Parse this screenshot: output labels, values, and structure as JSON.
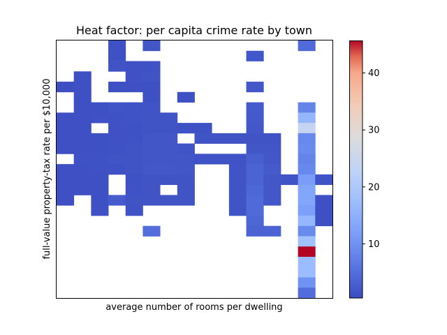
{
  "chart_data": {
    "type": "heatmap",
    "title": "Heat factor: per capita crime rate by town",
    "xlabel": "average number of rooms per dwelling",
    "ylabel": "full-value property-tax rate per $10,000",
    "x_ticks_shown": false,
    "y_ticks_shown": false,
    "grid": false,
    "colormap": "coolwarm",
    "colorbar": {
      "vmin": 0.5,
      "vmax": 45.7,
      "ticks": [
        10,
        20,
        30,
        40
      ],
      "placement": "right"
    },
    "n_cols": 16,
    "n_rows": 25,
    "cells": [
      [
        3,
        0,
        1.2
      ],
      [
        5,
        0,
        1.8
      ],
      [
        14,
        0,
        4.5
      ],
      [
        3,
        1,
        1.3
      ],
      [
        11,
        1,
        1.9
      ],
      [
        3,
        2,
        1.5
      ],
      [
        4,
        2,
        1.2
      ],
      [
        5,
        2,
        1.3
      ],
      [
        1,
        3,
        1.0
      ],
      [
        4,
        3,
        1.2
      ],
      [
        5,
        3,
        1.5
      ],
      [
        0,
        4,
        0.8
      ],
      [
        1,
        4,
        1.0
      ],
      [
        3,
        4,
        1.1
      ],
      [
        4,
        4,
        1.0
      ],
      [
        5,
        4,
        1.1
      ],
      [
        11,
        4,
        2.0
      ],
      [
        1,
        5,
        1.0
      ],
      [
        5,
        5,
        1.1
      ],
      [
        7,
        5,
        1.1
      ],
      [
        1,
        6,
        1.0
      ],
      [
        2,
        6,
        1.1
      ],
      [
        3,
        6,
        1.6
      ],
      [
        4,
        6,
        1.4
      ],
      [
        5,
        6,
        1.6
      ],
      [
        11,
        6,
        2.4
      ],
      [
        14,
        6,
        8.0
      ],
      [
        0,
        7,
        1.0
      ],
      [
        1,
        7,
        1.0
      ],
      [
        2,
        7,
        1.2
      ],
      [
        3,
        7,
        1.3
      ],
      [
        4,
        7,
        1.4
      ],
      [
        5,
        7,
        1.5
      ],
      [
        6,
        7,
        1.5
      ],
      [
        11,
        7,
        2.2
      ],
      [
        14,
        7,
        16.0
      ],
      [
        0,
        8,
        1.0
      ],
      [
        1,
        8,
        1.0
      ],
      [
        3,
        8,
        1.2
      ],
      [
        4,
        8,
        1.3
      ],
      [
        5,
        8,
        1.5
      ],
      [
        6,
        8,
        1.5
      ],
      [
        7,
        8,
        1.3
      ],
      [
        8,
        8,
        1.3
      ],
      [
        11,
        8,
        2.0
      ],
      [
        14,
        8,
        24.0
      ],
      [
        0,
        9,
        1.0
      ],
      [
        1,
        9,
        1.0
      ],
      [
        2,
        9,
        1.1
      ],
      [
        3,
        9,
        1.2
      ],
      [
        4,
        9,
        1.3
      ],
      [
        5,
        9,
        1.8
      ],
      [
        6,
        9,
        1.8
      ],
      [
        8,
        9,
        1.5
      ],
      [
        9,
        9,
        1.5
      ],
      [
        10,
        9,
        1.5
      ],
      [
        11,
        9,
        1.5
      ],
      [
        12,
        9,
        1.5
      ],
      [
        14,
        9,
        8.5
      ],
      [
        0,
        10,
        1.0
      ],
      [
        1,
        10,
        1.0
      ],
      [
        2,
        10,
        1.1
      ],
      [
        3,
        10,
        1.3
      ],
      [
        4,
        10,
        1.5
      ],
      [
        5,
        10,
        1.8
      ],
      [
        6,
        10,
        1.8
      ],
      [
        7,
        10,
        1.6
      ],
      [
        11,
        10,
        1.8
      ],
      [
        12,
        10,
        1.8
      ],
      [
        14,
        10,
        9.0
      ],
      [
        1,
        11,
        1.2
      ],
      [
        2,
        11,
        1.3
      ],
      [
        3,
        11,
        1.5
      ],
      [
        4,
        11,
        1.6
      ],
      [
        5,
        11,
        1.8
      ],
      [
        6,
        11,
        1.8
      ],
      [
        7,
        11,
        1.8
      ],
      [
        8,
        11,
        1.4
      ],
      [
        9,
        11,
        1.4
      ],
      [
        10,
        11,
        1.4
      ],
      [
        11,
        11,
        3.0
      ],
      [
        12,
        11,
        2.0
      ],
      [
        14,
        11,
        8.0
      ],
      [
        0,
        12,
        1.0
      ],
      [
        1,
        12,
        1.1
      ],
      [
        2,
        12,
        1.2
      ],
      [
        3,
        12,
        1.3
      ],
      [
        4,
        12,
        1.5
      ],
      [
        5,
        12,
        2.0
      ],
      [
        6,
        12,
        2.0
      ],
      [
        7,
        12,
        1.8
      ],
      [
        10,
        12,
        1.6
      ],
      [
        11,
        12,
        3.5
      ],
      [
        12,
        12,
        2.3
      ],
      [
        14,
        12,
        8.5
      ],
      [
        0,
        13,
        1.0
      ],
      [
        1,
        13,
        1.0
      ],
      [
        2,
        13,
        1.1
      ],
      [
        4,
        13,
        1.3
      ],
      [
        5,
        13,
        1.5
      ],
      [
        6,
        13,
        1.5
      ],
      [
        7,
        13,
        1.5
      ],
      [
        10,
        13,
        1.5
      ],
      [
        11,
        13,
        3.5
      ],
      [
        12,
        13,
        2.0
      ],
      [
        13,
        13,
        1.6
      ],
      [
        14,
        13,
        11.5
      ],
      [
        15,
        13,
        1.6
      ],
      [
        0,
        14,
        1.0
      ],
      [
        1,
        14,
        1.0
      ],
      [
        2,
        14,
        1.1
      ],
      [
        4,
        14,
        1.3
      ],
      [
        5,
        14,
        1.5
      ],
      [
        7,
        14,
        1.5
      ],
      [
        10,
        14,
        1.5
      ],
      [
        11,
        14,
        4.0
      ],
      [
        12,
        14,
        2.0
      ],
      [
        14,
        14,
        13.0
      ],
      [
        0,
        15,
        1.0
      ],
      [
        2,
        15,
        1.1
      ],
      [
        3,
        15,
        2.5
      ],
      [
        4,
        15,
        1.5
      ],
      [
        5,
        15,
        1.5
      ],
      [
        6,
        15,
        1.5
      ],
      [
        7,
        15,
        1.5
      ],
      [
        10,
        15,
        1.5
      ],
      [
        11,
        15,
        4.5
      ],
      [
        12,
        15,
        2.0
      ],
      [
        14,
        15,
        13.0
      ],
      [
        15,
        15,
        1.0
      ],
      [
        2,
        16,
        1.2
      ],
      [
        4,
        16,
        1.4
      ],
      [
        10,
        16,
        1.5
      ],
      [
        11,
        16,
        4.5
      ],
      [
        14,
        16,
        12.0
      ],
      [
        15,
        16,
        1.0
      ],
      [
        11,
        17,
        4.0
      ],
      [
        14,
        17,
        16.0
      ],
      [
        15,
        17,
        1.0
      ],
      [
        5,
        18,
        5.0
      ],
      [
        11,
        18,
        3.5
      ],
      [
        12,
        18,
        3.5
      ],
      [
        14,
        18,
        9.0
      ],
      [
        14,
        19,
        18.0
      ],
      [
        14,
        20,
        45.7
      ],
      [
        14,
        21,
        17.0
      ],
      [
        14,
        22,
        17.0
      ],
      [
        14,
        23,
        10.0
      ],
      [
        14,
        24,
        5.0
      ]
    ]
  }
}
